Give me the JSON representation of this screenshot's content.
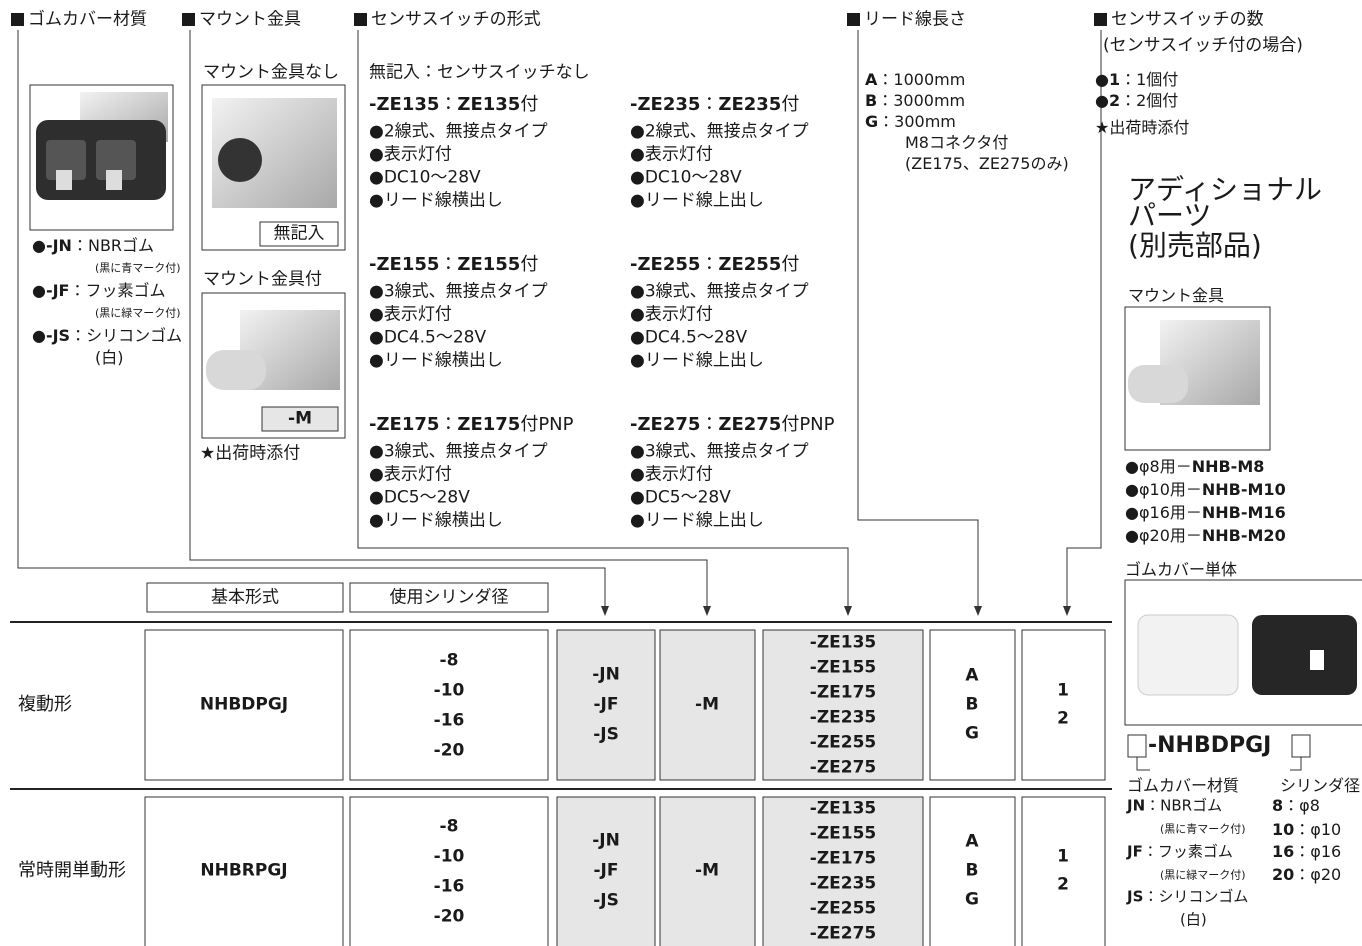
{
  "cover": {
    "heading": "ゴムカバー材質",
    "items": [
      {
        "code": "●-JN",
        "sep": "：",
        "label": "NBRゴム",
        "note": "(黒に青マーク付)"
      },
      {
        "code": "●-JF",
        "sep": "：",
        "label": "フッ素ゴム",
        "note": "(黒に緑マーク付)"
      },
      {
        "code": "●-JS",
        "sep": "：",
        "label": "シリコンゴム",
        "note": "(白)"
      }
    ]
  },
  "mount": {
    "heading": "マウント金具",
    "without": "マウント金具なし",
    "without_code": "無記入",
    "with": "マウント金具付",
    "with_code": "-M",
    "note": "★出荷時添付"
  },
  "sensor": {
    "heading": "センサスイッチの形式",
    "none": "無記入：センサスイッチなし",
    "models": [
      {
        "code": "-ZE135",
        "sep": "：",
        "name": "ZE135",
        "suffix": "付",
        "features": [
          "●2線式、無接点タイプ",
          "●表示灯付",
          "●DC10～28V",
          "●リード線横出し"
        ]
      },
      {
        "code": "-ZE235",
        "sep": "：",
        "name": "ZE235",
        "suffix": "付",
        "features": [
          "●2線式、無接点タイプ",
          "●表示灯付",
          "●DC10～28V",
          "●リード線上出し"
        ]
      },
      {
        "code": "-ZE155",
        "sep": "：",
        "name": "ZE155",
        "suffix": "付",
        "features": [
          "●3線式、無接点タイプ",
          "●表示灯付",
          "●DC4.5～28V",
          "●リード線横出し"
        ]
      },
      {
        "code": "-ZE255",
        "sep": "：",
        "name": "ZE255",
        "suffix": "付",
        "features": [
          "●3線式、無接点タイプ",
          "●表示灯付",
          "●DC4.5～28V",
          "●リード線上出し"
        ]
      },
      {
        "code": "-ZE175",
        "sep": "：",
        "name": "ZE175",
        "suffix": "付PNP",
        "features": [
          "●3線式、無接点タイプ",
          "●表示灯付",
          "●DC5～28V",
          "●リード線横出し"
        ]
      },
      {
        "code": "-ZE275",
        "sep": "：",
        "name": "ZE275",
        "suffix": "付PNP",
        "features": [
          "●3線式、無接点タイプ",
          "●表示灯付",
          "●DC5～28V",
          "●リード線上出し"
        ]
      }
    ]
  },
  "lead": {
    "heading": "リード線長さ",
    "items": [
      {
        "code": "A",
        "sep": "：",
        "value": "1000mm"
      },
      {
        "code": "B",
        "sep": "：",
        "value": "3000mm"
      },
      {
        "code": "G",
        "sep": "：",
        "value": "300mm"
      }
    ],
    "extra": [
      "M8コネクタ付",
      "(ZE175、ZE275のみ)"
    ]
  },
  "count": {
    "heading": "センサスイッチの数",
    "subheading": "(センサスイッチ付の場合)",
    "items": [
      {
        "code": "●1",
        "sep": "：",
        "value": "1個付"
      },
      {
        "code": "●2",
        "sep": "：",
        "value": "2個付"
      }
    ],
    "note": "★出荷時添付"
  },
  "parts": {
    "title": [
      "アディショナル",
      "パーツ",
      "(別売部品)"
    ],
    "mount": {
      "heading": "マウント金具",
      "items": [
        {
          "bore": "●φ8用－",
          "code": "NHB-M8"
        },
        {
          "bore": "●φ10用－",
          "code": "NHB-M10"
        },
        {
          "bore": "●φ16用－",
          "code": "NHB-M16"
        },
        {
          "bore": "●φ20用－",
          "code": "NHB-M20"
        }
      ]
    },
    "cover": {
      "heading": "ゴムカバー単体",
      "code": "-NHBDPGJ",
      "label_left": "ゴムカバー材質",
      "label_right": "シリンダ径",
      "materials": [
        {
          "code": "JN",
          "sep": "：",
          "label": "NBRゴム",
          "note": "(黒に青マーク付)"
        },
        {
          "code": "JF",
          "sep": "：",
          "label": "フッ素ゴム",
          "note": "(黒に緑マーク付)"
        },
        {
          "code": "JS",
          "sep": "：",
          "label": "シリコンゴム",
          "note": "(白)"
        }
      ],
      "bores": [
        {
          "code": "8",
          "sep": "：",
          "value": "φ8"
        },
        {
          "code": "10",
          "sep": "：",
          "value": "φ10"
        },
        {
          "code": "16",
          "sep": "：",
          "value": "φ16"
        },
        {
          "code": "20",
          "sep": "：",
          "value": "φ20"
        }
      ]
    }
  },
  "table": {
    "headers": [
      "基本形式",
      "使用シリンダ径"
    ],
    "rows": [
      {
        "type": "複動形",
        "model": "NHBDPGJ",
        "bores": [
          "-8",
          "-10",
          "-16",
          "-20"
        ],
        "covers": [
          "-JN",
          "-JF",
          "-JS"
        ],
        "mount": "-M",
        "sensors": [
          "-ZE135",
          "-ZE155",
          "-ZE175",
          "-ZE235",
          "-ZE255",
          "-ZE275"
        ],
        "leads": [
          "A",
          "B",
          "G"
        ],
        "counts": [
          "1",
          "2"
        ]
      },
      {
        "type": "常時開単動形",
        "model": "NHBRPGJ",
        "bores": [
          "-8",
          "-10",
          "-16",
          "-20"
        ],
        "covers": [
          "-JN",
          "-JF",
          "-JS"
        ],
        "mount": "-M",
        "sensors": [
          "-ZE135",
          "-ZE155",
          "-ZE175",
          "-ZE235",
          "-ZE255",
          "-ZE275"
        ],
        "leads": [
          "A",
          "B",
          "G"
        ],
        "counts": [
          "1",
          "2"
        ]
      }
    ]
  }
}
